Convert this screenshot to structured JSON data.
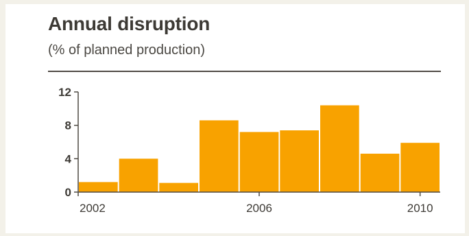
{
  "chart_data": {
    "type": "bar",
    "title": "Annual disruption",
    "subtitle": "(% of planned production)",
    "xlabel": "",
    "ylabel": "",
    "categories": [
      "2002",
      "2003",
      "2004",
      "2005",
      "2006",
      "2007",
      "2008",
      "2009",
      "2010"
    ],
    "values": [
      1.2,
      4.0,
      1.1,
      8.6,
      7.2,
      7.4,
      10.4,
      4.6,
      5.9
    ],
    "x_tick_labels": [
      "2002",
      "2006",
      "2010"
    ],
    "y_ticks": [
      0,
      4,
      8,
      12
    ],
    "ylim": [
      0,
      12
    ],
    "grid": false,
    "bar_color": "#f8a200",
    "axis_color": "#4f4a44",
    "text_color": "#3d3a35"
  }
}
